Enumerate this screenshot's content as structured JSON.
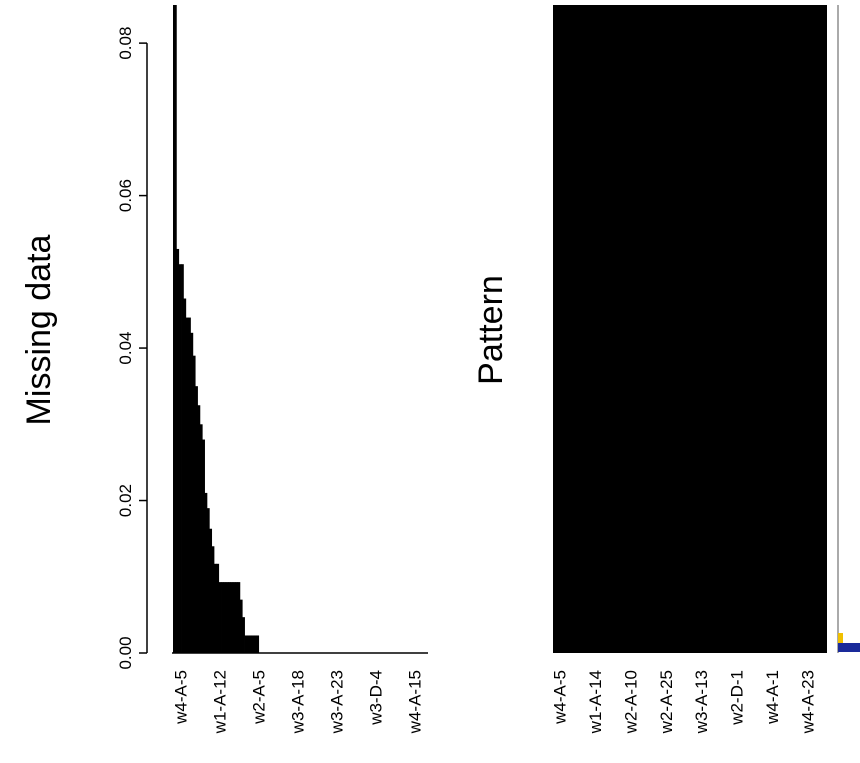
{
  "chart_data": [
    {
      "type": "bar",
      "title": "",
      "xlabel": "",
      "ylabel": "Missing data",
      "ylim": [
        0,
        0.085
      ],
      "yticks": [
        0.0,
        0.02,
        0.04,
        0.06,
        0.08
      ],
      "ytick_labels": [
        "0.00",
        "0.02",
        "0.04",
        "0.06",
        "0.08"
      ],
      "xtick_labels": [
        "w4-A-5",
        "w1-A-12",
        "w2-A-5",
        "w3-A-18",
        "w3-A-23",
        "w3-D-4",
        "w4-A-15"
      ],
      "values": [
        0.085,
        0.053,
        0.051,
        0.051,
        0.0465,
        0.044,
        0.044,
        0.042,
        0.039,
        0.035,
        0.0325,
        0.03,
        0.028,
        0.021,
        0.019,
        0.0163,
        0.014,
        0.0117,
        0.0117,
        0.0093,
        0.0093,
        0.0093,
        0.0093,
        0.0093,
        0.0093,
        0.0093,
        0.0093,
        0.0093,
        0.007,
        0.0047,
        0.0023,
        0.0023,
        0.0023,
        0.0023,
        0.0023,
        0.0023,
        0,
        0,
        0,
        0,
        0,
        0,
        0,
        0,
        0,
        0,
        0,
        0,
        0,
        0,
        0,
        0,
        0,
        0,
        0,
        0,
        0,
        0,
        0,
        0,
        0,
        0,
        0,
        0,
        0,
        0,
        0,
        0,
        0,
        0,
        0,
        0,
        0,
        0,
        0,
        0,
        0,
        0,
        0,
        0,
        0,
        0,
        0,
        0,
        0,
        0,
        0,
        0,
        0,
        0,
        0,
        0,
        0,
        0,
        0,
        0,
        0,
        0,
        0,
        0,
        0,
        0,
        0,
        0,
        0,
        0,
        0,
        0
      ]
    },
    {
      "type": "heatmap",
      "title": "",
      "ylabel": "Pattern",
      "xtick_labels": [
        "w4-A-5",
        "w1-A-14",
        "w2-A-10",
        "w2-A-25",
        "w3-A-13",
        "w2-D-1",
        "w4-A-1",
        "w4-A-23"
      ],
      "fill_color": "#000000",
      "side_bar_colors": [
        "#f0c000",
        "#1a2a9a"
      ]
    }
  ]
}
